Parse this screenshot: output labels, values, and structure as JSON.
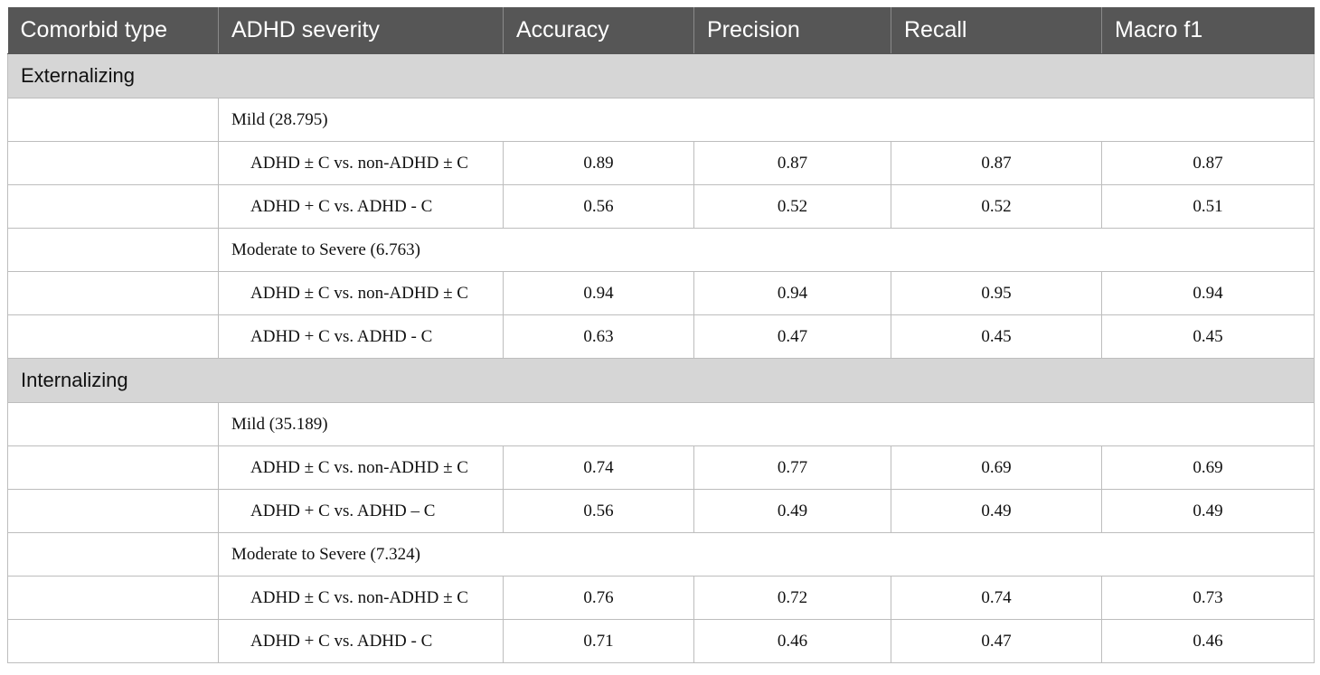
{
  "headers": [
    "Comorbid type",
    "ADHD severity",
    "Accuracy",
    "Precision",
    "Recall",
    "Macro f1"
  ],
  "sections": [
    {
      "label": "Externalizing",
      "groups": [
        {
          "severity": "Mild (28.795)",
          "rows": [
            {
              "comparison": "ADHD ± C vs. non-ADHD ± C",
              "accuracy": "0.89",
              "precision": "0.87",
              "recall": "0.87",
              "macro_f1": "0.87"
            },
            {
              "comparison": "ADHD + C vs. ADHD - C",
              "accuracy": "0.56",
              "precision": "0.52",
              "recall": "0.52",
              "macro_f1": "0.51"
            }
          ]
        },
        {
          "severity": "Moderate to Severe (6.763)",
          "rows": [
            {
              "comparison": "ADHD ± C vs. non-ADHD ± C",
              "accuracy": "0.94",
              "precision": "0.94",
              "recall": "0.95",
              "macro_f1": "0.94"
            },
            {
              "comparison": "ADHD + C vs. ADHD - C",
              "accuracy": "0.63",
              "precision": "0.47",
              "recall": "0.45",
              "macro_f1": "0.45"
            }
          ]
        }
      ]
    },
    {
      "label": "Internalizing",
      "groups": [
        {
          "severity": "Mild (35.189)",
          "rows": [
            {
              "comparison": "ADHD ± C vs. non-ADHD ± C",
              "accuracy": "0.74",
              "precision": "0.77",
              "recall": "0.69",
              "macro_f1": "0.69"
            },
            {
              "comparison": "ADHD + C vs. ADHD – C",
              "accuracy": "0.56",
              "precision": "0.49",
              "recall": "0.49",
              "macro_f1": "0.49"
            }
          ]
        },
        {
          "severity": "Moderate to Severe (7.324)",
          "rows": [
            {
              "comparison": "ADHD ± C vs. non-ADHD ± C",
              "accuracy": "0.76",
              "precision": "0.72",
              "recall": "0.74",
              "macro_f1": "0.73"
            },
            {
              "comparison": "ADHD + C vs. ADHD - C",
              "accuracy": "0.71",
              "precision": "0.46",
              "recall": "0.47",
              "macro_f1": "0.46"
            }
          ]
        }
      ]
    }
  ]
}
